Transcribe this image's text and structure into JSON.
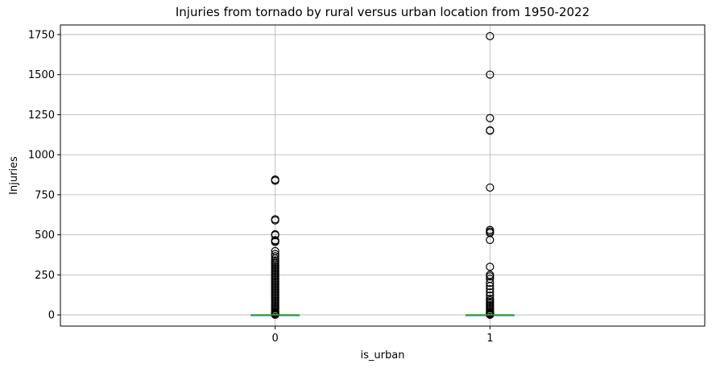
{
  "chart_data": {
    "type": "box",
    "title": "Injuries from tornado by rural versus urban location from 1950-2022",
    "xlabel": "is_urban",
    "ylabel": "Injuries",
    "categories": [
      "0",
      "1"
    ],
    "ylim": [
      -70,
      1810
    ],
    "yticks": [
      0,
      250,
      500,
      750,
      1000,
      1250,
      1500,
      1750
    ],
    "grid": true,
    "colors": {
      "median": "#2ca02c",
      "box": "#1f77b4",
      "outlier": "#000000",
      "grid": "#b0b0b0"
    },
    "boxes": [
      {
        "category": "0",
        "q1": 0,
        "median": 0,
        "q3": 0,
        "whisker_low": 0,
        "whisker_high": 0,
        "outliers": [
          845,
          838,
          597,
          590,
          503,
          498,
          466,
          460,
          455,
          398,
          380,
          366,
          352,
          340,
          330,
          320,
          310,
          300,
          290,
          280,
          270,
          260,
          250,
          240,
          230,
          220,
          210,
          200,
          190,
          180,
          170,
          160,
          150,
          140,
          130,
          120,
          110,
          100,
          90,
          80,
          70,
          60,
          50,
          40,
          30,
          20,
          15,
          10,
          5,
          3,
          2,
          1
        ]
      },
      {
        "category": "1",
        "q1": 0,
        "median": 0,
        "q3": 0,
        "whisker_low": 0,
        "whisker_high": 0,
        "outliers": [
          1740,
          1500,
          1228,
          1152,
          1150,
          795,
          530,
          520,
          512,
          468,
          300,
          250,
          240,
          225,
          200,
          180,
          160,
          140,
          120,
          100,
          90,
          80,
          70,
          60,
          50,
          40,
          30,
          20,
          15,
          10,
          5,
          2,
          1
        ]
      }
    ]
  }
}
